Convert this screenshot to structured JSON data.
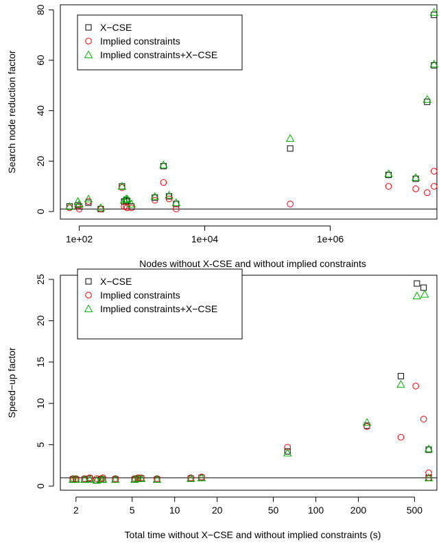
{
  "colors": {
    "x_cse": "#000000",
    "implied": "#e8000b",
    "both": "#00b000"
  },
  "chart_data": [
    {
      "type": "scatter",
      "title": "",
      "xlabel": "Nodes without X-CSE and without implied constraints",
      "ylabel": "Search node reduction factor",
      "xscale": "log",
      "xlim": [
        50,
        50000000
      ],
      "ylim": [
        -3,
        82
      ],
      "grid": false,
      "legend_position": "top-left",
      "hline": 1,
      "xticks": [
        {
          "value": 100,
          "label": "1e+02"
        },
        {
          "value": 10000,
          "label": "1e+04"
        },
        {
          "value": 1000000,
          "label": "1e+06"
        }
      ],
      "yticks": [
        {
          "value": 0,
          "label": "0"
        },
        {
          "value": 20,
          "label": "20"
        },
        {
          "value": 40,
          "label": "40"
        },
        {
          "value": 60,
          "label": "60"
        },
        {
          "value": 80,
          "label": "80"
        }
      ],
      "series": [
        {
          "name": "X−CSE",
          "marker": "square",
          "color": "#000000",
          "points": [
            [
              70,
              2
            ],
            [
              95,
              2.5
            ],
            [
              100,
              2
            ],
            [
              140,
              3.5
            ],
            [
              220,
              1
            ],
            [
              480,
              10
            ],
            [
              520,
              4
            ],
            [
              560,
              4.5
            ],
            [
              580,
              4.2
            ],
            [
              680,
              2
            ],
            [
              1600,
              5.5
            ],
            [
              2200,
              18
            ],
            [
              2700,
              6
            ],
            [
              3500,
              3
            ],
            [
              230000,
              25
            ],
            [
              8500000,
              14.5
            ],
            [
              23000000,
              13
            ],
            [
              35000000,
              43.5
            ],
            [
              45000000,
              58
            ],
            [
              45000000,
              78
            ]
          ]
        },
        {
          "name": "Implied constraints",
          "marker": "circle",
          "color": "#e8000b",
          "points": [
            [
              70,
              1.5
            ],
            [
              95,
              2
            ],
            [
              100,
              1
            ],
            [
              140,
              4
            ],
            [
              220,
              1
            ],
            [
              480,
              9.5
            ],
            [
              520,
              2
            ],
            [
              560,
              2
            ],
            [
              580,
              1.5
            ],
            [
              680,
              1.5
            ],
            [
              1600,
              4.5
            ],
            [
              2200,
              11.5
            ],
            [
              2700,
              5
            ],
            [
              3500,
              1
            ],
            [
              230000,
              3
            ],
            [
              8500000,
              10
            ],
            [
              23000000,
              9
            ],
            [
              35000000,
              7.5
            ],
            [
              45000000,
              16
            ],
            [
              45000000,
              10
            ]
          ]
        },
        {
          "name": "Implied constraints+X−CSE",
          "marker": "triangle",
          "color": "#00b000",
          "points": [
            [
              70,
              2
            ],
            [
              95,
              4
            ],
            [
              100,
              3
            ],
            [
              140,
              5
            ],
            [
              220,
              1.5
            ],
            [
              480,
              10
            ],
            [
              520,
              4.5
            ],
            [
              560,
              5
            ],
            [
              580,
              5
            ],
            [
              680,
              3
            ],
            [
              1600,
              6
            ],
            [
              2200,
              18.5
            ],
            [
              2700,
              6.5
            ],
            [
              3500,
              3.5
            ],
            [
              230000,
              29
            ],
            [
              8500000,
              15
            ],
            [
              23000000,
              13.5
            ],
            [
              35000000,
              44.5
            ],
            [
              45000000,
              58.5
            ],
            [
              45000000,
              79
            ]
          ]
        }
      ]
    },
    {
      "type": "scatter",
      "title": "",
      "xlabel": "Total time without X−CSE and without implied constraints (s)",
      "ylabel": "Speed−up factor",
      "xscale": "log",
      "xlim": [
        1.55,
        720
      ],
      "ylim": [
        -0.5,
        25.5
      ],
      "grid": false,
      "legend_position": "top-left",
      "hline": 1,
      "xticks": [
        {
          "value": 2,
          "label": "2"
        },
        {
          "value": 5,
          "label": "5"
        },
        {
          "value": 10,
          "label": "10"
        },
        {
          "value": 20,
          "label": "20"
        },
        {
          "value": 50,
          "label": "50"
        },
        {
          "value": 100,
          "label": "100"
        },
        {
          "value": 200,
          "label": "200"
        },
        {
          "value": 500,
          "label": "500"
        }
      ],
      "yticks": [
        {
          "value": 0,
          "label": "0"
        },
        {
          "value": 5,
          "label": "5"
        },
        {
          "value": 10,
          "label": "10"
        },
        {
          "value": 15,
          "label": "15"
        },
        {
          "value": 20,
          "label": "20"
        },
        {
          "value": 25,
          "label": "25"
        }
      ],
      "series": [
        {
          "name": "X−CSE",
          "marker": "square",
          "color": "#000000",
          "points": [
            [
              1.9,
              0.8
            ],
            [
              2.0,
              0.8
            ],
            [
              2.3,
              0.8
            ],
            [
              2.5,
              0.9
            ],
            [
              2.8,
              0.7
            ],
            [
              3.0,
              0.8
            ],
            [
              3.1,
              0.8
            ],
            [
              3.8,
              0.8
            ],
            [
              5.2,
              0.8
            ],
            [
              5.5,
              0.9
            ],
            [
              5.8,
              0.9
            ],
            [
              7.5,
              0.8
            ],
            [
              13,
              0.9
            ],
            [
              15.5,
              1.0
            ],
            [
              63,
              4.2
            ],
            [
              230,
              7.3
            ],
            [
              400,
              13.3
            ],
            [
              520,
              24.5
            ],
            [
              580,
              24
            ],
            [
              630,
              4.4
            ],
            [
              630,
              1.0
            ]
          ]
        },
        {
          "name": "Implied constraints",
          "marker": "circle",
          "color": "#e8000b",
          "points": [
            [
              1.9,
              0.9
            ],
            [
              2.0,
              0.9
            ],
            [
              2.3,
              0.9
            ],
            [
              2.5,
              1.0
            ],
            [
              2.8,
              0.9
            ],
            [
              3.0,
              0.9
            ],
            [
              3.1,
              1.0
            ],
            [
              3.8,
              0.9
            ],
            [
              5.2,
              0.9
            ],
            [
              5.5,
              1.0
            ],
            [
              5.8,
              1.0
            ],
            [
              7.5,
              0.9
            ],
            [
              13,
              1.0
            ],
            [
              15.5,
              1.1
            ],
            [
              63,
              4.7
            ],
            [
              230,
              7.2
            ],
            [
              400,
              5.9
            ],
            [
              510,
              12.1
            ],
            [
              580,
              8.1
            ],
            [
              630,
              1.6
            ],
            [
              630,
              1.0
            ]
          ]
        },
        {
          "name": "Implied constraints+X−CSE",
          "marker": "triangle",
          "color": "#00b000",
          "points": [
            [
              1.9,
              0.8
            ],
            [
              2.0,
              0.8
            ],
            [
              2.3,
              0.8
            ],
            [
              2.5,
              0.8
            ],
            [
              2.8,
              0.7
            ],
            [
              3.0,
              0.8
            ],
            [
              3.1,
              0.8
            ],
            [
              3.8,
              0.8
            ],
            [
              5.2,
              0.8
            ],
            [
              5.5,
              0.9
            ],
            [
              5.8,
              0.9
            ],
            [
              7.5,
              0.8
            ],
            [
              13,
              0.9
            ],
            [
              15.5,
              1.0
            ],
            [
              63,
              4.0
            ],
            [
              230,
              7.7
            ],
            [
              400,
              12.3
            ],
            [
              520,
              23
            ],
            [
              590,
              23.2
            ],
            [
              630,
              4.5
            ],
            [
              630,
              1.0
            ]
          ]
        }
      ]
    }
  ]
}
